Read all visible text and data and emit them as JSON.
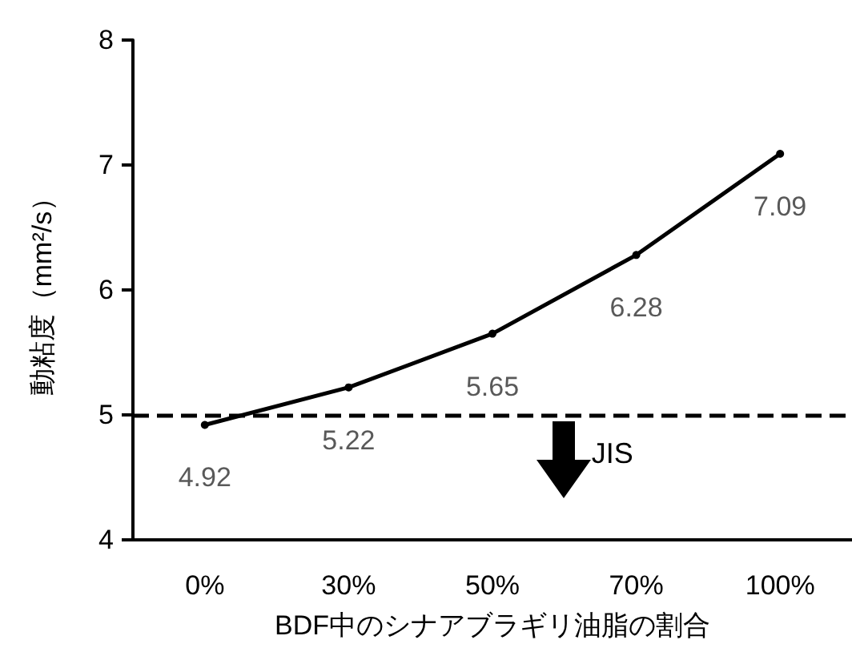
{
  "chart_data": {
    "type": "line",
    "xlabel": "BDF中のシナアブラギリ油脂の割合",
    "ylabel": "動粘度（mm²/s）",
    "categories": [
      "0%",
      "30%",
      "50%",
      "70%",
      "100%"
    ],
    "series": [
      {
        "color": "#000000",
        "values": [
          4.92,
          5.22,
          5.65,
          6.28,
          7.09
        ]
      }
    ],
    "ylim": [
      4,
      8
    ],
    "yticks": [
      4,
      5,
      6,
      7,
      8
    ],
    "grid": false,
    "marker": "circle",
    "line_style": "solid",
    "data_labels": true,
    "ref_lines": [
      {
        "axis": "y",
        "value": 5,
        "label": "JIS",
        "line_style": "dashed",
        "color": "#000000"
      }
    ]
  }
}
